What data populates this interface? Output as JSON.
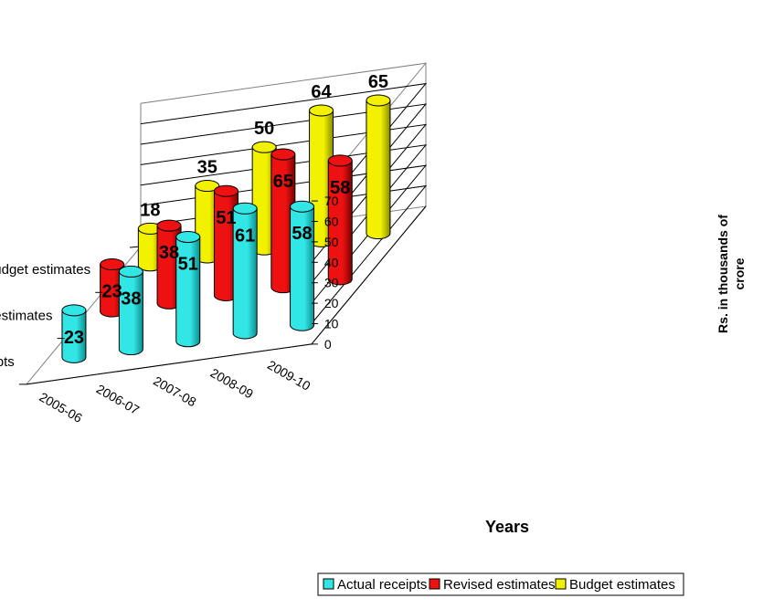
{
  "chart_data": {
    "type": "bar",
    "subtype": "3d-cylinder",
    "title": "",
    "xlabel": "Years",
    "ylabel": "Rs. in thousands of crore",
    "ylabel_lines": [
      "Rs. in thousands of",
      "crore"
    ],
    "ylim": [
      0,
      70
    ],
    "yticks": [
      "0",
      "10",
      "20",
      "30",
      "40",
      "50",
      "60",
      "70"
    ],
    "ytick_values": [
      0,
      10,
      20,
      30,
      40,
      50,
      60,
      70
    ],
    "grid": true,
    "legend_position": "bottom",
    "categories": [
      "2005-06",
      "2006-07",
      "2007-08",
      "2008-09",
      "2009-10"
    ],
    "series": [
      {
        "name": "Actual receipts",
        "color": "#33e6e6",
        "values": [
          23,
          38,
          51,
          61,
          58
        ],
        "labels": [
          "23",
          "38",
          "51",
          "61",
          "58"
        ]
      },
      {
        "name": "Revised estimates",
        "color": "#ee1111",
        "values": [
          23,
          38,
          51,
          65,
          58
        ],
        "labels": [
          "23",
          "38",
          "51",
          "65",
          "58"
        ]
      },
      {
        "name": "Budget estimates",
        "color": "#f2f200",
        "values": [
          18,
          35,
          50,
          64,
          65
        ],
        "labels": [
          "18",
          "35",
          "50",
          "64",
          "65"
        ]
      }
    ]
  }
}
